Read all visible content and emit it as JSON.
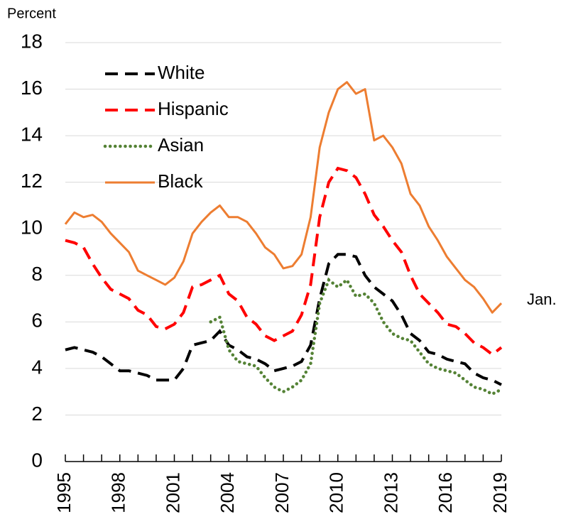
{
  "chart_data": {
    "type": "line",
    "y_label": "Percent",
    "annotation": "Jan.",
    "x": [
      1995,
      1995.5,
      1996,
      1996.5,
      1997,
      1997.5,
      1998,
      1998.5,
      1999,
      1999.5,
      2000,
      2000.5,
      2001,
      2001.5,
      2002,
      2002.5,
      2003,
      2003.5,
      2004,
      2004.5,
      2005,
      2005.5,
      2006,
      2006.5,
      2007,
      2007.5,
      2008,
      2008.5,
      2009,
      2009.5,
      2010,
      2010.5,
      2011,
      2011.5,
      2012,
      2012.5,
      2013,
      2013.5,
      2014,
      2014.5,
      2015,
      2015.5,
      2016,
      2016.5,
      2017,
      2017.5,
      2018,
      2018.5,
      2019
    ],
    "series": [
      {
        "name": "White",
        "color": "#000000",
        "style": "dashed",
        "values": [
          4.8,
          4.9,
          4.8,
          4.7,
          4.5,
          4.2,
          3.9,
          3.9,
          3.8,
          3.7,
          3.5,
          3.5,
          3.5,
          4.0,
          5.0,
          5.1,
          5.2,
          5.6,
          5.0,
          4.8,
          4.5,
          4.4,
          4.2,
          3.9,
          4.0,
          4.1,
          4.3,
          5.0,
          7.0,
          8.5,
          8.9,
          8.9,
          8.8,
          8.0,
          7.5,
          7.2,
          6.9,
          6.3,
          5.5,
          5.2,
          4.7,
          4.6,
          4.4,
          4.3,
          4.2,
          3.8,
          3.6,
          3.5,
          3.3
        ]
      },
      {
        "name": "Hispanic",
        "color": "#ff0000",
        "style": "dashed",
        "values": [
          9.5,
          9.4,
          9.2,
          8.5,
          7.9,
          7.4,
          7.2,
          7.0,
          6.5,
          6.3,
          5.8,
          5.7,
          5.9,
          6.4,
          7.5,
          7.6,
          7.8,
          8.0,
          7.2,
          6.9,
          6.2,
          5.9,
          5.4,
          5.2,
          5.4,
          5.6,
          6.3,
          7.6,
          10.5,
          12.0,
          12.6,
          12.5,
          12.2,
          11.5,
          10.6,
          10.1,
          9.5,
          9.0,
          8.0,
          7.2,
          6.8,
          6.4,
          5.9,
          5.8,
          5.5,
          5.1,
          4.9,
          4.6,
          4.9
        ]
      },
      {
        "name": "Asian",
        "color": "#548235",
        "style": "dotted",
        "values": [
          null,
          null,
          null,
          null,
          null,
          null,
          null,
          null,
          null,
          null,
          null,
          null,
          null,
          null,
          null,
          null,
          6.0,
          6.2,
          4.8,
          4.3,
          4.2,
          4.1,
          3.6,
          3.2,
          3.0,
          3.2,
          3.5,
          4.2,
          6.8,
          7.8,
          7.5,
          7.8,
          7.1,
          7.2,
          6.8,
          6.0,
          5.5,
          5.3,
          5.2,
          4.7,
          4.2,
          4.0,
          3.9,
          3.8,
          3.5,
          3.2,
          3.1,
          2.9,
          3.1
        ]
      },
      {
        "name": "Black",
        "color": "#ed7d31",
        "style": "solid",
        "values": [
          10.2,
          10.7,
          10.5,
          10.6,
          10.3,
          9.8,
          9.4,
          9.0,
          8.2,
          8.0,
          7.8,
          7.6,
          7.9,
          8.6,
          9.8,
          10.3,
          10.7,
          11.0,
          10.5,
          10.5,
          10.3,
          9.8,
          9.2,
          8.9,
          8.3,
          8.4,
          8.9,
          10.5,
          13.5,
          15.0,
          16.0,
          16.3,
          15.8,
          16.0,
          13.8,
          14.0,
          13.5,
          12.8,
          11.5,
          11.0,
          10.1,
          9.5,
          8.8,
          8.3,
          7.8,
          7.5,
          7.0,
          6.4,
          6.8
        ]
      }
    ],
    "xlim": [
      1995,
      2019
    ],
    "xticks": [
      1995,
      1998,
      2001,
      2004,
      2007,
      2010,
      2013,
      2016,
      2019
    ],
    "x_minor_ticks": [
      1995,
      1996,
      1997,
      1998,
      1999,
      2000,
      2001,
      2002,
      2003,
      2004,
      2005,
      2006,
      2007,
      2008,
      2009,
      2010,
      2011,
      2012,
      2013,
      2014,
      2015,
      2016,
      2017,
      2018,
      2019
    ],
    "ylim": [
      0,
      18
    ],
    "yticks": [
      0,
      2,
      4,
      6,
      8,
      10,
      12,
      14,
      16,
      18
    ],
    "grid": true,
    "legend": "upper left"
  }
}
